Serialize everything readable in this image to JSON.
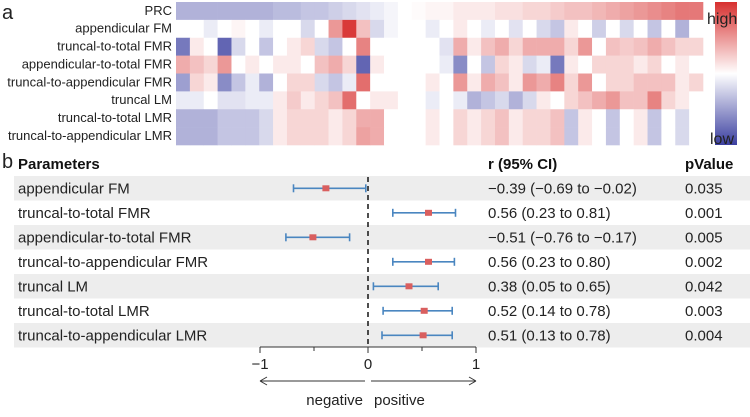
{
  "panel_a": {
    "letter": "a",
    "legend": {
      "high": "high",
      "low": "low",
      "colors": [
        "#3b3fa0",
        "#ffffff",
        "#d7302f"
      ]
    },
    "chart_data": {
      "type": "heatmap",
      "rows": [
        "PRC",
        "appendicular FM",
        "truncal-to-total FMR",
        "appendicular-to-total FMR",
        "truncal-to-appendicular FMR",
        "truncal LM",
        "truncal-to-total LMR",
        "truncal-to-appendicular LMR"
      ],
      "n_columns": 38,
      "value_range": [
        -1,
        1
      ],
      "values": [
        [
          -0.4,
          -0.4,
          -0.4,
          -0.4,
          -0.4,
          -0.4,
          -0.4,
          -0.35,
          -0.35,
          -0.3,
          -0.3,
          -0.25,
          -0.2,
          -0.15,
          -0.1,
          -0.05,
          0.0,
          0.02,
          0.05,
          0.05,
          0.1,
          0.1,
          0.1,
          0.15,
          0.15,
          0.2,
          0.2,
          0.25,
          0.3,
          0.3,
          0.35,
          0.4,
          0.45,
          0.5,
          0.55,
          0.6,
          0.65,
          0.65
        ],
        [
          0.0,
          0.0,
          -0.1,
          0.0,
          0.05,
          0.0,
          -0.1,
          0.0,
          0.0,
          -0.2,
          0.0,
          0.5,
          0.95,
          0.3,
          -0.2,
          -0.05,
          0.0,
          0.0,
          -0.1,
          0.0,
          0.1,
          0.0,
          -0.1,
          0.0,
          -0.15,
          0.0,
          -0.2,
          -0.3,
          0.1,
          0.0,
          -0.25,
          0.0,
          -0.2,
          0.0,
          -0.3,
          0.0,
          -0.4,
          0.0
        ],
        [
          -0.7,
          0.1,
          0.0,
          -0.8,
          -0.2,
          0.0,
          -0.3,
          0.0,
          0.1,
          0.2,
          -0.2,
          -0.3,
          0.0,
          0.6,
          0.0,
          0.0,
          0.0,
          0.0,
          0.0,
          -0.15,
          0.4,
          0.1,
          0.3,
          0.4,
          0.2,
          0.4,
          0.4,
          0.4,
          0.2,
          0.5,
          0.0,
          0.3,
          0.25,
          0.3,
          0.4,
          0.3,
          0.2,
          0.2
        ],
        [
          0.4,
          0.3,
          0.2,
          0.5,
          0.0,
          0.1,
          0.0,
          0.1,
          0.1,
          0.0,
          0.3,
          0.4,
          0.2,
          -0.8,
          0.1,
          0.0,
          0.0,
          0.0,
          0.0,
          -0.1,
          -0.6,
          0.0,
          -0.3,
          0.2,
          0.1,
          -0.2,
          -0.1,
          -0.7,
          0.1,
          0.0,
          0.2,
          0.2,
          0.2,
          0.1,
          0.2,
          0.0,
          0.1,
          0.0
        ],
        [
          -0.5,
          0.2,
          0.1,
          -0.6,
          -0.3,
          -0.1,
          -0.4,
          0.0,
          0.2,
          0.2,
          -0.2,
          -0.3,
          -0.1,
          0.7,
          0.0,
          0.0,
          0.0,
          0.0,
          0.1,
          0.0,
          0.5,
          0.1,
          0.4,
          0.3,
          0.1,
          0.5,
          0.4,
          0.6,
          0.2,
          0.5,
          0.0,
          0.2,
          0.2,
          0.3,
          0.3,
          0.3,
          0.1,
          0.2
        ],
        [
          -0.1,
          -0.1,
          0.0,
          -0.15,
          -0.15,
          -0.1,
          -0.1,
          0.1,
          0.25,
          0.1,
          0.2,
          0.3,
          0.7,
          0.0,
          0.1,
          0.1,
          0.0,
          0.0,
          -0.1,
          0.0,
          -0.1,
          -0.4,
          -0.3,
          -0.2,
          -0.4,
          -0.2,
          0.1,
          0.0,
          0.2,
          0.3,
          0.4,
          0.5,
          0.3,
          0.3,
          0.6,
          0.2,
          0.1,
          0.0
        ],
        [
          -0.4,
          -0.4,
          -0.4,
          -0.3,
          -0.3,
          -0.3,
          -0.2,
          0.1,
          0.2,
          0.2,
          0.2,
          0.1,
          0.2,
          0.4,
          0.4,
          0.0,
          0.0,
          0.0,
          0.1,
          0.0,
          0.2,
          0.1,
          0.2,
          0.3,
          0.1,
          0.2,
          0.2,
          0.3,
          -0.3,
          0.1,
          0.0,
          -0.3,
          0.0,
          0.1,
          -0.3,
          0.0,
          -0.2,
          0.0
        ],
        [
          -0.4,
          -0.4,
          -0.4,
          -0.3,
          -0.3,
          -0.3,
          -0.2,
          0.1,
          0.2,
          0.2,
          0.2,
          0.1,
          0.2,
          0.45,
          0.4,
          0.0,
          0.0,
          0.0,
          0.1,
          0.0,
          0.2,
          0.1,
          0.2,
          0.3,
          0.1,
          0.2,
          0.2,
          0.3,
          -0.3,
          0.1,
          0.0,
          -0.3,
          0.0,
          0.1,
          -0.3,
          0.0,
          -0.2,
          0.0
        ]
      ]
    }
  },
  "panel_b": {
    "letter": "b",
    "headers": {
      "parameters": "Parameters",
      "r": "r (95% CI)",
      "p": "pValue"
    },
    "axis_labels": {
      "negative": "negative",
      "positive": "positive"
    },
    "chart_data": {
      "type": "scatter",
      "subtype": "forest",
      "xlim": [
        -1,
        1
      ],
      "xticks": [
        -1,
        -0.5,
        0,
        0.5,
        1
      ],
      "xtick_labels": [
        "−1",
        "−0.5",
        "0",
        "0.5",
        "1"
      ],
      "rows": [
        {
          "label": "appendicular FM",
          "r": -0.39,
          "lo": -0.69,
          "hi": -0.02,
          "ci_text": "−0.39 (−0.69 to −0.02)",
          "p": "0.035"
        },
        {
          "label": "truncal-to-total FMR",
          "r": 0.56,
          "lo": 0.23,
          "hi": 0.81,
          "ci_text": "0.56 (0.23 to 0.81)",
          "p": "0.001"
        },
        {
          "label": "appendicular-to-total FMR",
          "r": -0.51,
          "lo": -0.76,
          "hi": -0.17,
          "ci_text": "−0.51 (−0.76 to −0.17)",
          "p": "0.005"
        },
        {
          "label": "truncal-to-appendicular FMR",
          "r": 0.56,
          "lo": 0.23,
          "hi": 0.8,
          "ci_text": "0.56 (0.23 to 0.80)",
          "p": "0.002"
        },
        {
          "label": "truncal LM",
          "r": 0.38,
          "lo": 0.05,
          "hi": 0.65,
          "ci_text": "0.38 (0.05 to 0.65)",
          "p": "0.042"
        },
        {
          "label": "truncal-to-total LMR",
          "r": 0.52,
          "lo": 0.14,
          "hi": 0.78,
          "ci_text": "0.52 (0.14 to 0.78)",
          "p": "0.003"
        },
        {
          "label": "truncal-to-appendicular LMR",
          "r": 0.51,
          "lo": 0.13,
          "hi": 0.78,
          "ci_text": "0.51 (0.13 to 0.78)",
          "p": "0.004"
        }
      ]
    }
  }
}
